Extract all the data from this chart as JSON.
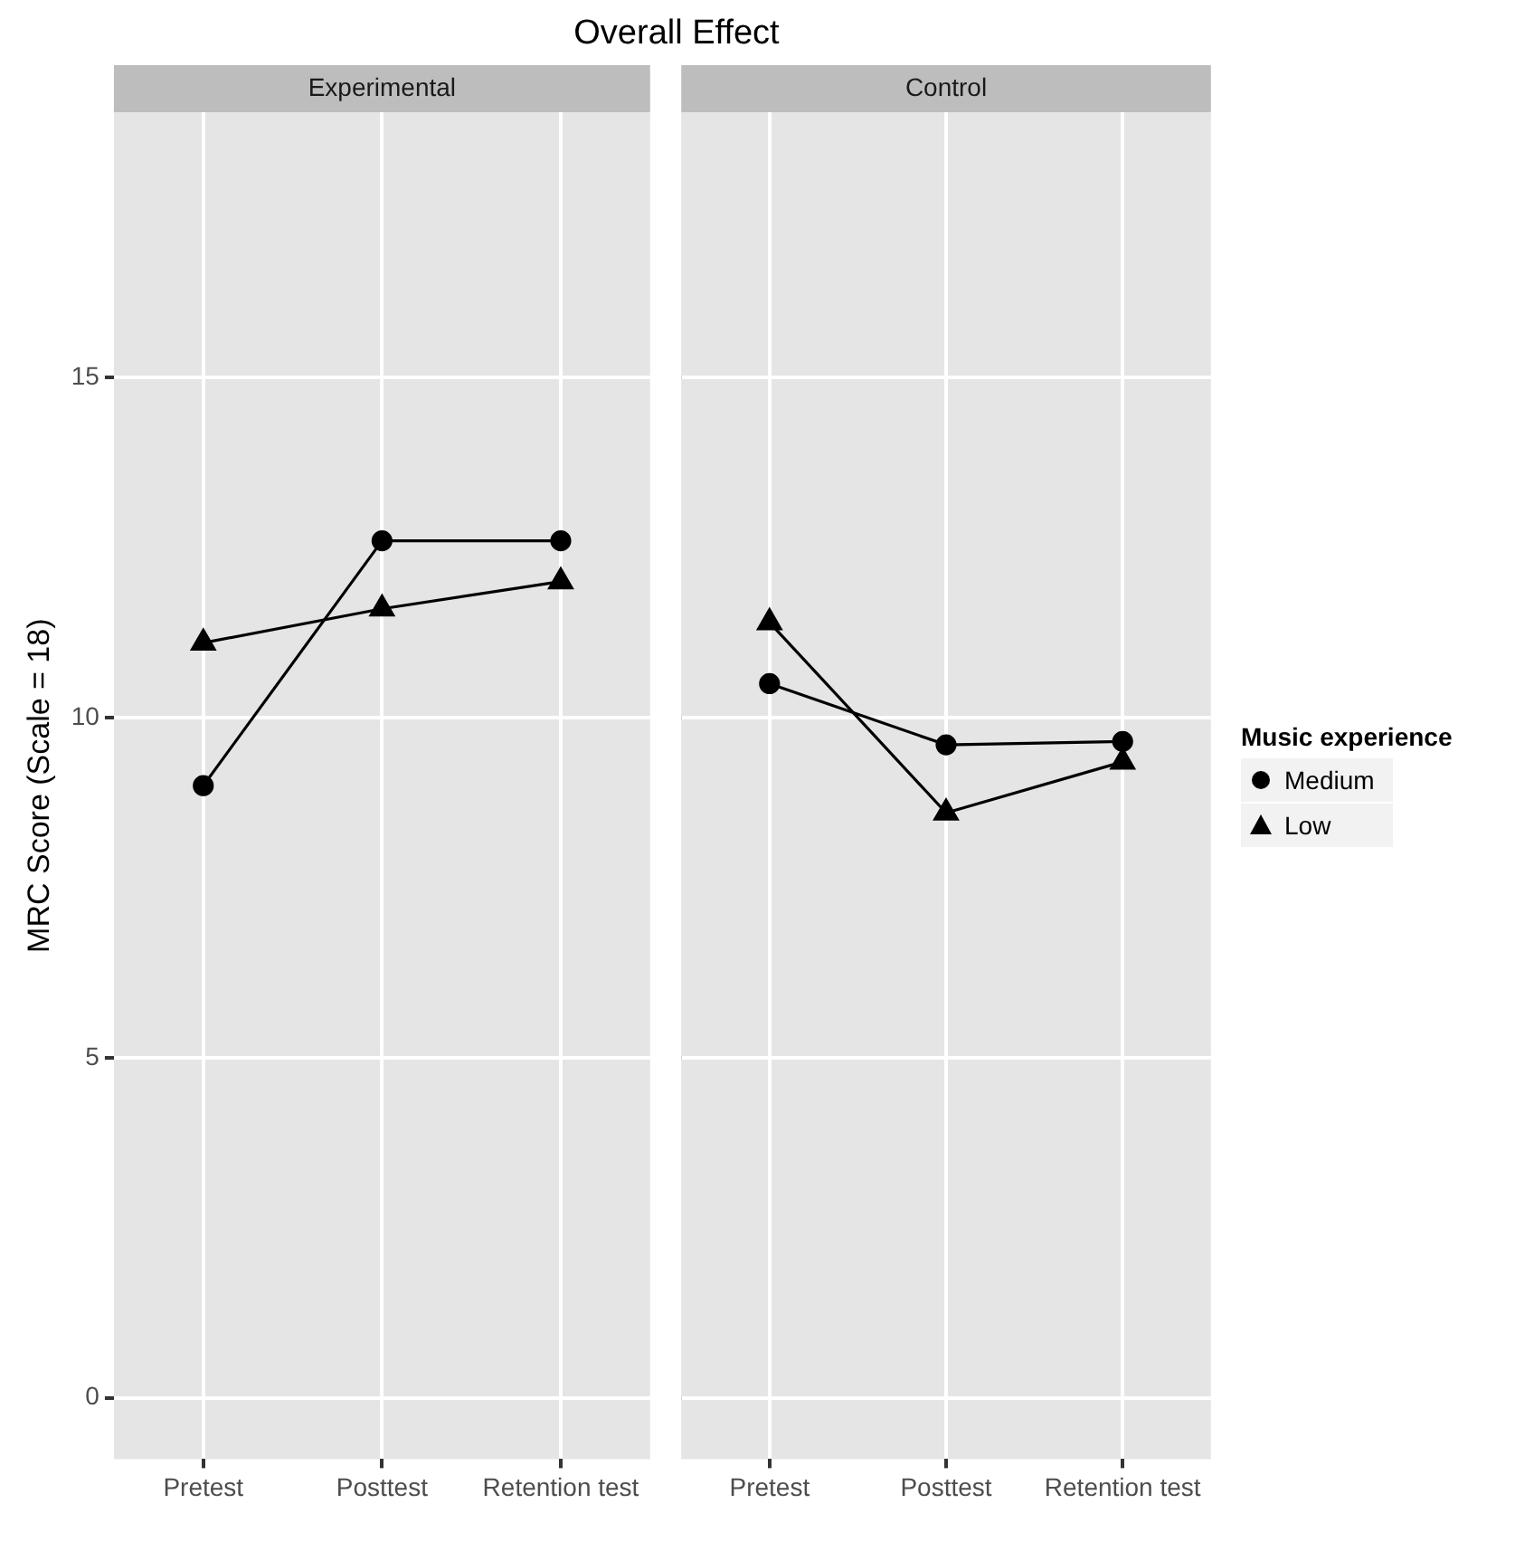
{
  "chart_data": [
    {
      "type": "line",
      "title": "Overall Effect",
      "subtitle": "Experimental",
      "ylabel": "MRC Score (Scale = 18)",
      "categories": [
        "Pretest",
        "Posttest",
        "Retention test"
      ],
      "series": [
        {
          "color": "#000000",
          "marker": "circle",
          "values": [
            9.0,
            12.6,
            12.6
          ]
        },
        {
          "color": "#000000",
          "marker": "triangle",
          "values": [
            11.1,
            11.6,
            12.0
          ]
        }
      ],
      "ylim": [
        -0.9,
        18.9
      ],
      "yticks": [
        0,
        5,
        10,
        15
      ],
      "grid": true,
      "legend": false
    },
    {
      "type": "line",
      "subtitle": "Control",
      "legend_title": "Music experience",
      "categories": [
        "Pretest",
        "Posttest",
        "Retention test"
      ],
      "series": [
        {
          "name": "Medium",
          "color": "#000000",
          "marker": "circle",
          "values": [
            10.5,
            9.6,
            9.65
          ]
        },
        {
          "name": "Low",
          "color": "#000000",
          "marker": "triangle",
          "values": [
            11.4,
            8.6,
            9.35
          ]
        }
      ],
      "ylim": [
        -0.9,
        18.9
      ],
      "yticks": [
        0,
        5,
        10,
        15
      ],
      "grid": true,
      "legend": "right",
      "tick_labels": "x"
    }
  ]
}
